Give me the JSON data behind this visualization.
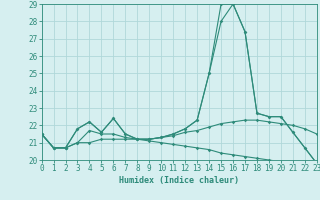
{
  "x": [
    0,
    1,
    2,
    3,
    4,
    5,
    6,
    7,
    8,
    9,
    10,
    11,
    12,
    13,
    14,
    15,
    16,
    17,
    18,
    19,
    20,
    21,
    22,
    23
  ],
  "line1": [
    21.5,
    20.7,
    20.7,
    21.8,
    22.2,
    21.6,
    22.4,
    21.5,
    21.2,
    21.2,
    21.3,
    21.5,
    21.8,
    22.3,
    25.0,
    29.0,
    29.0,
    27.4,
    22.7,
    22.5,
    22.5,
    21.6,
    20.7,
    19.8
  ],
  "line2": [
    21.5,
    20.7,
    20.7,
    21.8,
    22.2,
    21.6,
    22.4,
    21.5,
    21.2,
    21.2,
    21.3,
    21.5,
    21.8,
    22.3,
    25.0,
    28.0,
    29.0,
    27.4,
    22.7,
    22.5,
    22.5,
    21.6,
    20.7,
    19.8
  ],
  "line3": [
    21.5,
    20.7,
    20.7,
    21.0,
    21.7,
    21.5,
    21.5,
    21.3,
    21.2,
    21.2,
    21.3,
    21.4,
    21.6,
    21.7,
    21.9,
    22.1,
    22.2,
    22.3,
    22.3,
    22.2,
    22.1,
    22.0,
    21.8,
    21.5
  ],
  "line4": [
    21.5,
    20.7,
    20.7,
    21.0,
    21.0,
    21.2,
    21.2,
    21.2,
    21.2,
    21.1,
    21.0,
    20.9,
    20.8,
    20.7,
    20.6,
    20.4,
    20.3,
    20.2,
    20.1,
    20.0,
    19.9,
    19.8,
    19.8,
    19.8
  ],
  "line_color": "#2e8b7a",
  "bg_color": "#d6eff0",
  "grid_color": "#b0d8da",
  "xlabel": "Humidex (Indice chaleur)",
  "ylim": [
    20,
    29
  ],
  "xlim": [
    0,
    23
  ],
  "yticks": [
    20,
    21,
    22,
    23,
    24,
    25,
    26,
    27,
    28,
    29
  ],
  "xticks": [
    0,
    1,
    2,
    3,
    4,
    5,
    6,
    7,
    8,
    9,
    10,
    11,
    12,
    13,
    14,
    15,
    16,
    17,
    18,
    19,
    20,
    21,
    22,
    23
  ],
  "font_size": 5.5,
  "lw": 0.8,
  "ms": 1.8
}
